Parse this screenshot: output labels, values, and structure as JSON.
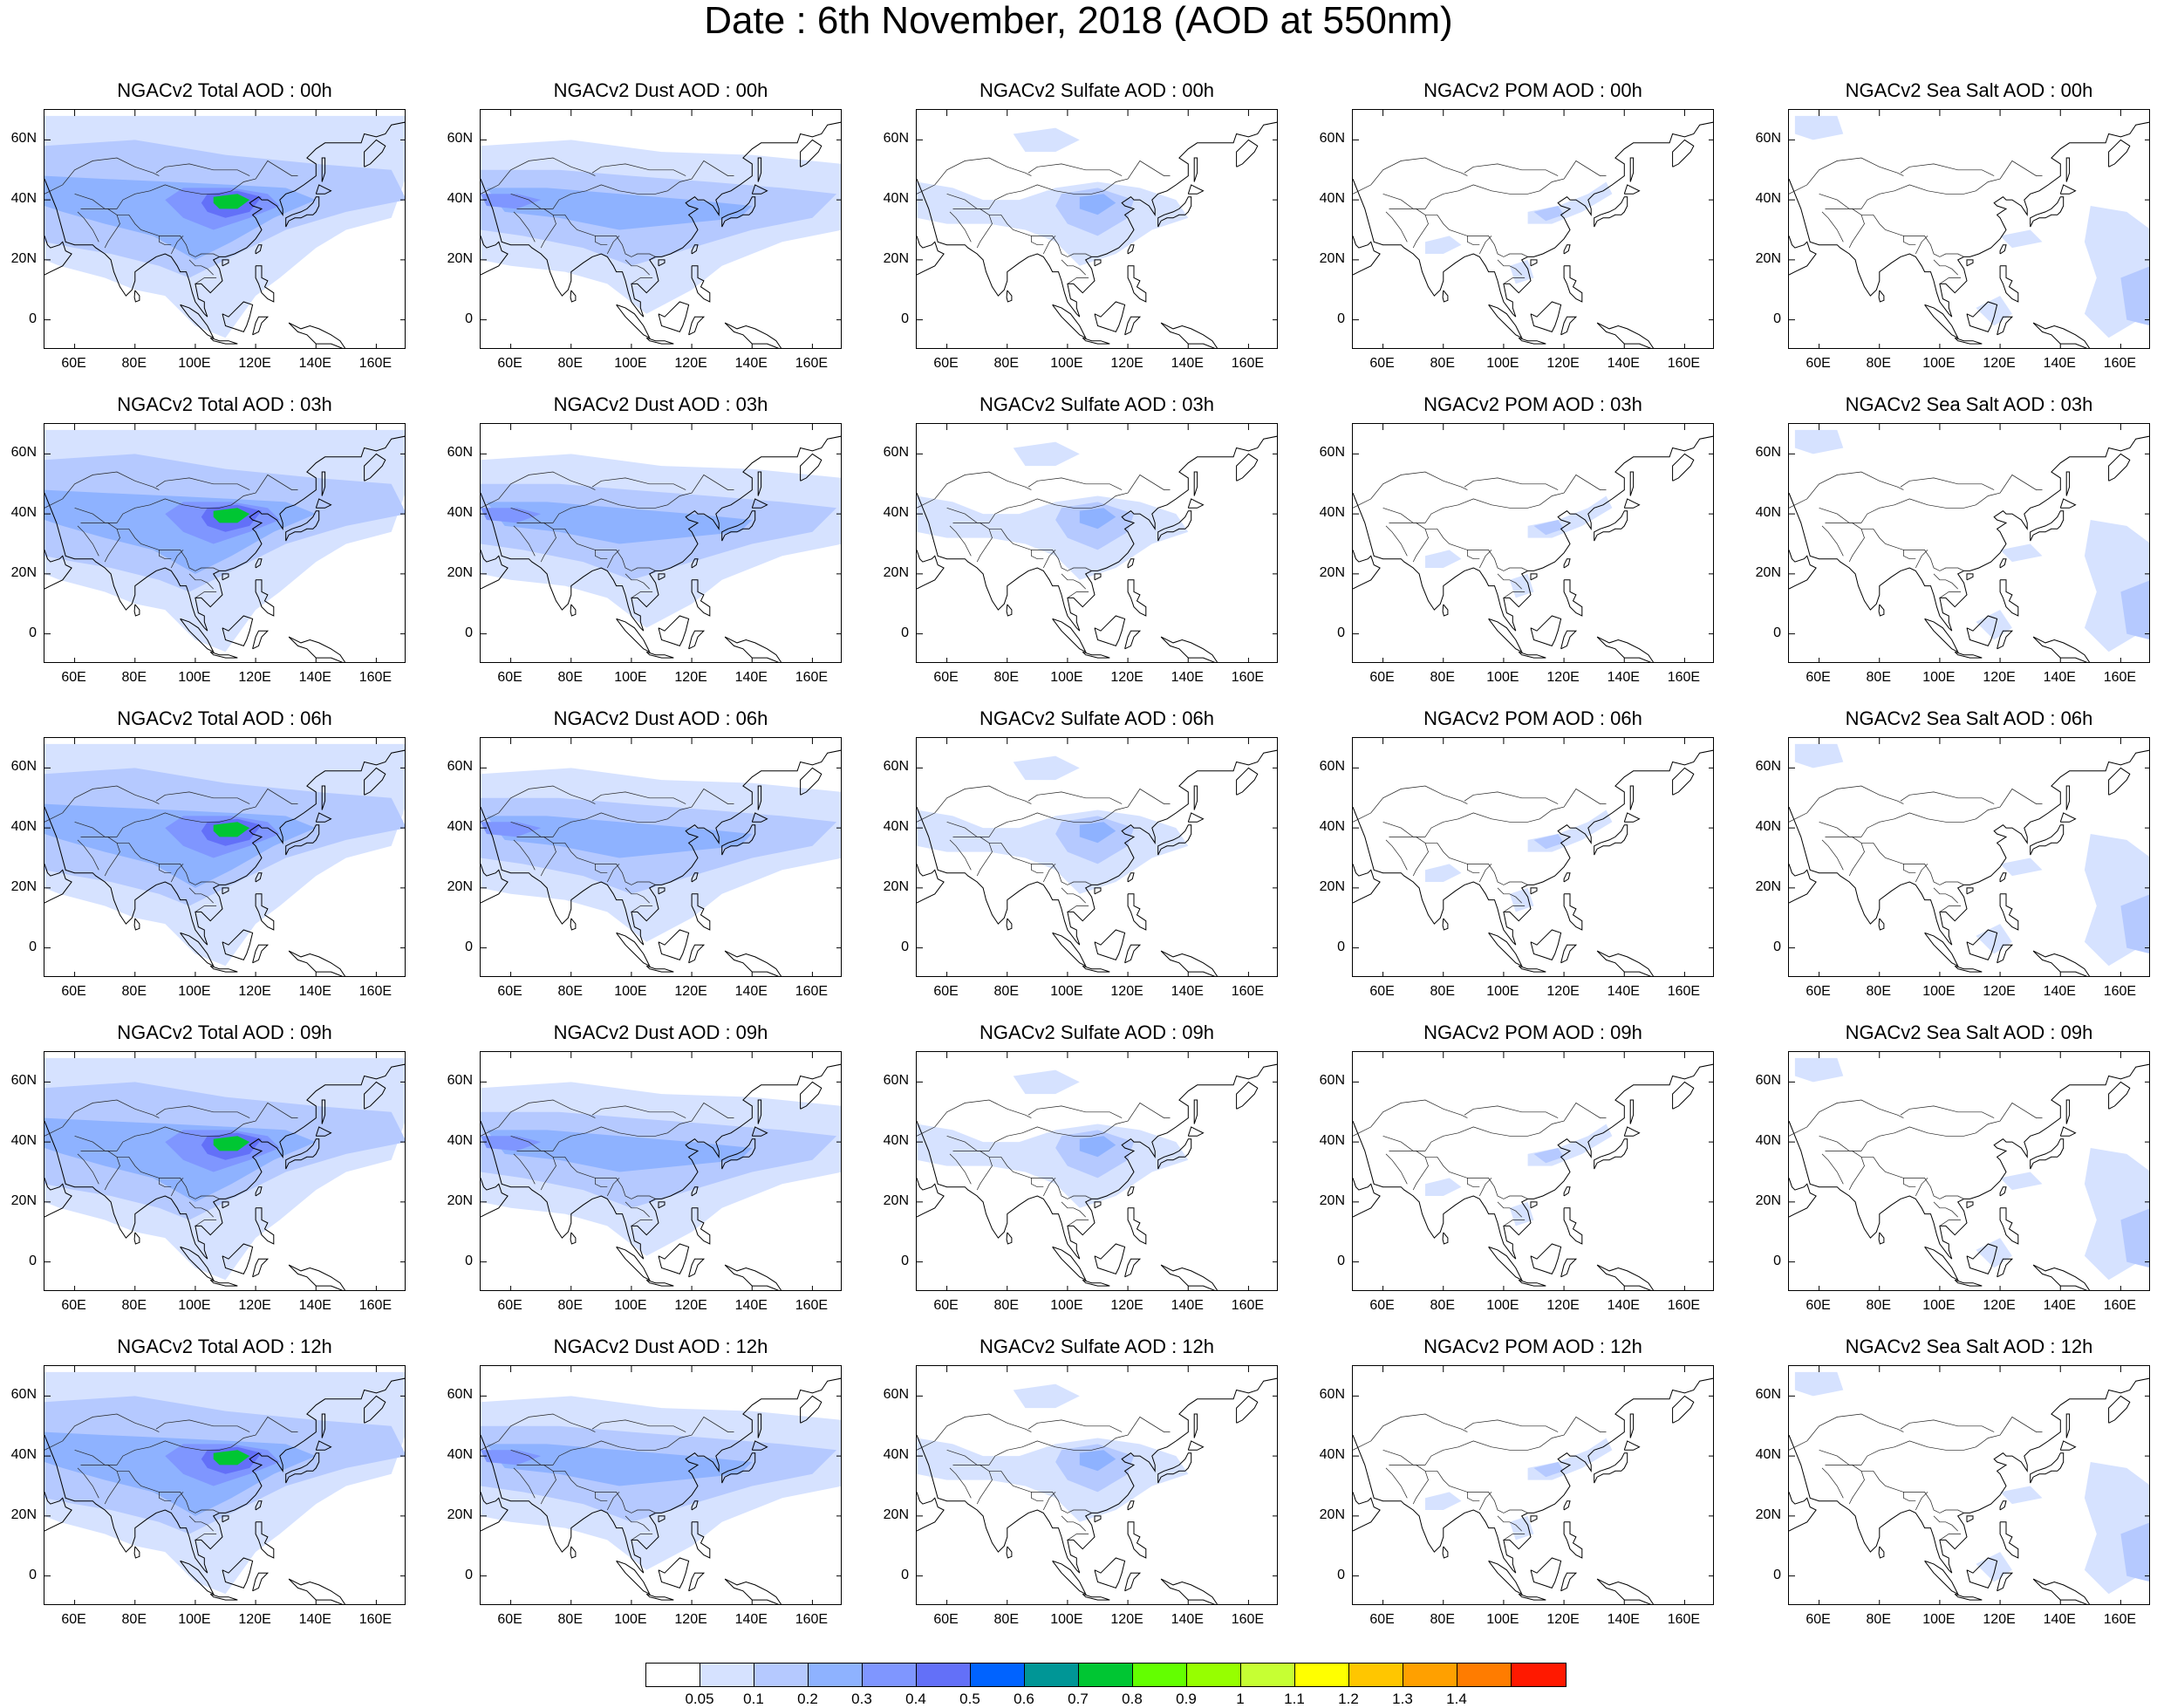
{
  "title": "Date : 6th November, 2018 (AOD at 550nm)",
  "panels": [
    [
      {
        "title": "NGACv2 Total AOD : 00h",
        "species": "total"
      },
      {
        "title": "NGACv2 Dust AOD : 00h",
        "species": "dust"
      },
      {
        "title": "NGACv2 Sulfate AOD : 00h",
        "species": "sulfate"
      },
      {
        "title": "NGACv2 POM AOD : 00h",
        "species": "pom"
      },
      {
        "title": "NGACv2 Sea Salt AOD : 00h",
        "species": "seasalt"
      }
    ],
    [
      {
        "title": "NGACv2 Total AOD : 03h",
        "species": "total"
      },
      {
        "title": "NGACv2 Dust AOD : 03h",
        "species": "dust"
      },
      {
        "title": "NGACv2 Sulfate AOD : 03h",
        "species": "sulfate"
      },
      {
        "title": "NGACv2 POM AOD : 03h",
        "species": "pom"
      },
      {
        "title": "NGACv2 Sea Salt AOD : 03h",
        "species": "seasalt"
      }
    ],
    [
      {
        "title": "NGACv2 Total AOD : 06h",
        "species": "total"
      },
      {
        "title": "NGACv2 Dust AOD : 06h",
        "species": "dust"
      },
      {
        "title": "NGACv2 Sulfate AOD : 06h",
        "species": "sulfate"
      },
      {
        "title": "NGACv2 POM AOD : 06h",
        "species": "pom"
      },
      {
        "title": "NGACv2 Sea Salt AOD : 06h",
        "species": "seasalt"
      }
    ],
    [
      {
        "title": "NGACv2 Total AOD : 09h",
        "species": "total"
      },
      {
        "title": "NGACv2 Dust AOD : 09h",
        "species": "dust"
      },
      {
        "title": "NGACv2 Sulfate AOD : 09h",
        "species": "sulfate"
      },
      {
        "title": "NGACv2 POM AOD : 09h",
        "species": "pom"
      },
      {
        "title": "NGACv2 Sea Salt  AOD : 09h",
        "species": "seasalt"
      }
    ],
    [
      {
        "title": "NGACv2 Total AOD  : 12h",
        "species": "total"
      },
      {
        "title": "NGACv2 Dust AOD : 12h",
        "species": "dust"
      },
      {
        "title": "NGACv2 Sulfate AOD : 12h",
        "species": "sulfate"
      },
      {
        "title": "NGACv2 POM  AOD : 12h",
        "species": "pom"
      },
      {
        "title": "NGACv2 Sea Salt  AOD : 12h",
        "species": "seasalt"
      }
    ]
  ],
  "axes": {
    "y_ticks": [
      "60N",
      "40N",
      "20N",
      "0"
    ],
    "x_ticks": [
      "60E",
      "80E",
      "100E",
      "120E",
      "140E",
      "160E"
    ]
  },
  "colorbar": {
    "labels": [
      "0.05",
      "0.1",
      "0.2",
      "0.3",
      "0.4",
      "0.5",
      "0.6",
      "0.7",
      "0.8",
      "0.9",
      "1",
      "1.1",
      "1.2",
      "1.3",
      "1.4"
    ],
    "colors": [
      "#ffffff",
      "#d6e2ff",
      "#b5c9ff",
      "#8eb2ff",
      "#7f96ff",
      "#6370f8",
      "#0063ff",
      "#009696",
      "#00c633",
      "#63ff00",
      "#96ff00",
      "#c6ff33",
      "#ffff00",
      "#ffc600",
      "#ffa000",
      "#ff7c00",
      "#ff1900"
    ]
  }
}
